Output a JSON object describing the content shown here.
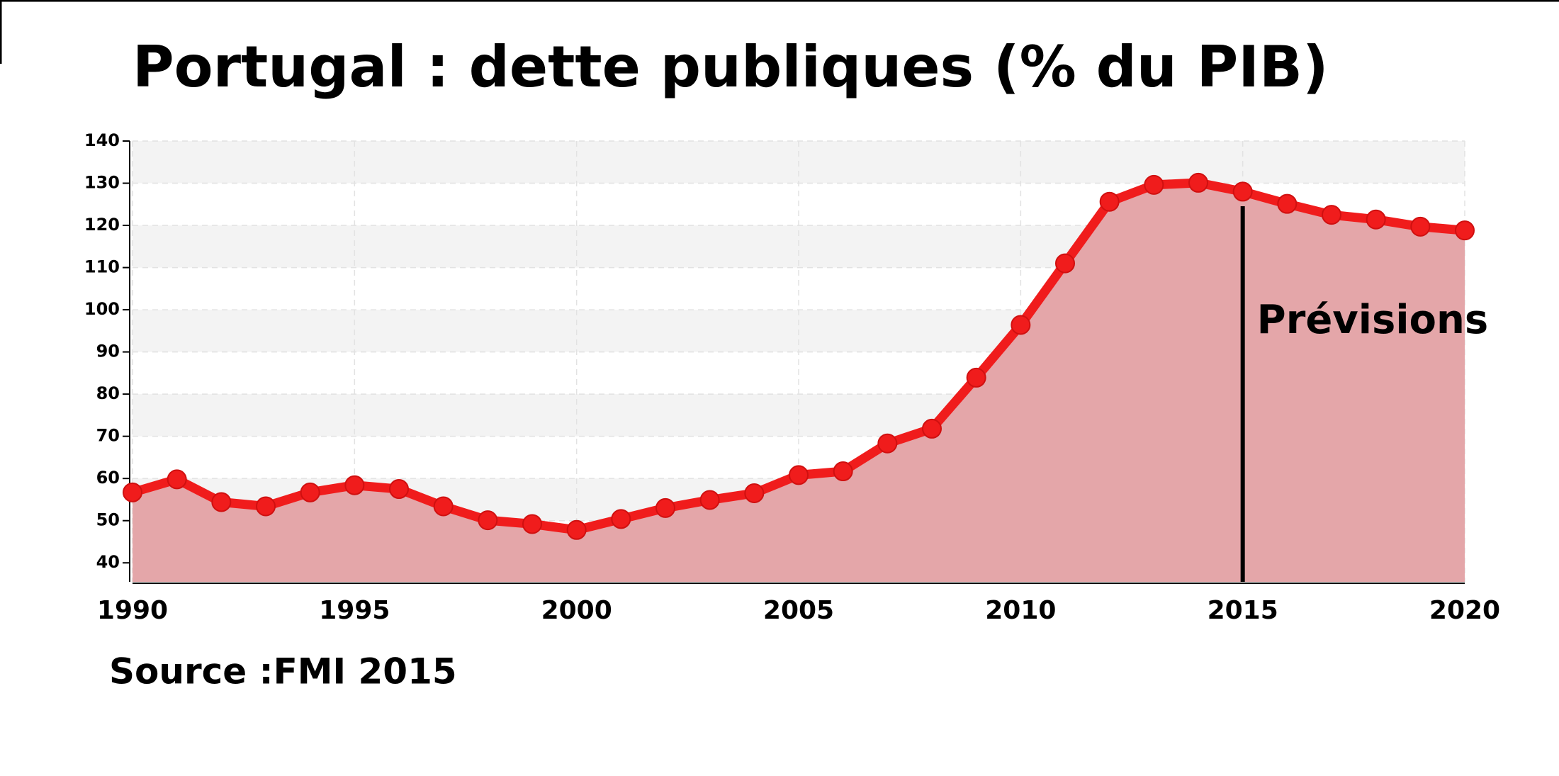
{
  "chart_data": {
    "type": "area-line",
    "title": "Portugal : dette publiques (% du PIB)",
    "source": "Source :FMI 2015",
    "x": [
      1990,
      1991,
      1992,
      1993,
      1994,
      1995,
      1996,
      1997,
      1998,
      1999,
      2000,
      2001,
      2002,
      2003,
      2004,
      2005,
      2006,
      2007,
      2008,
      2009,
      2010,
      2011,
      2012,
      2013,
      2014,
      2015,
      2016,
      2017,
      2018,
      2019,
      2020
    ],
    "values": [
      56.7,
      59.8,
      54.4,
      53.4,
      56.7,
      58.4,
      57.5,
      53.4,
      50.1,
      49.2,
      47.8,
      50.4,
      53.0,
      54.9,
      56.5,
      60.8,
      61.7,
      68.3,
      71.8,
      83.9,
      96.4,
      111.0,
      125.6,
      129.6,
      130.1,
      128.0,
      125.1,
      122.5,
      121.4,
      119.7,
      118.8
    ],
    "color": "#f01c1c",
    "fill_color": "#e4a6a9",
    "xlim": [
      1990,
      2020
    ],
    "xticks": [
      1990,
      1995,
      2000,
      2005,
      2010,
      2015,
      2020
    ],
    "ylim": [
      35.5,
      140
    ],
    "yticks": [
      40,
      50,
      60,
      70,
      80,
      90,
      100,
      110,
      120,
      130,
      140
    ],
    "grid": true,
    "annotation": {
      "text": "Prévisions",
      "x": 2015
    }
  }
}
